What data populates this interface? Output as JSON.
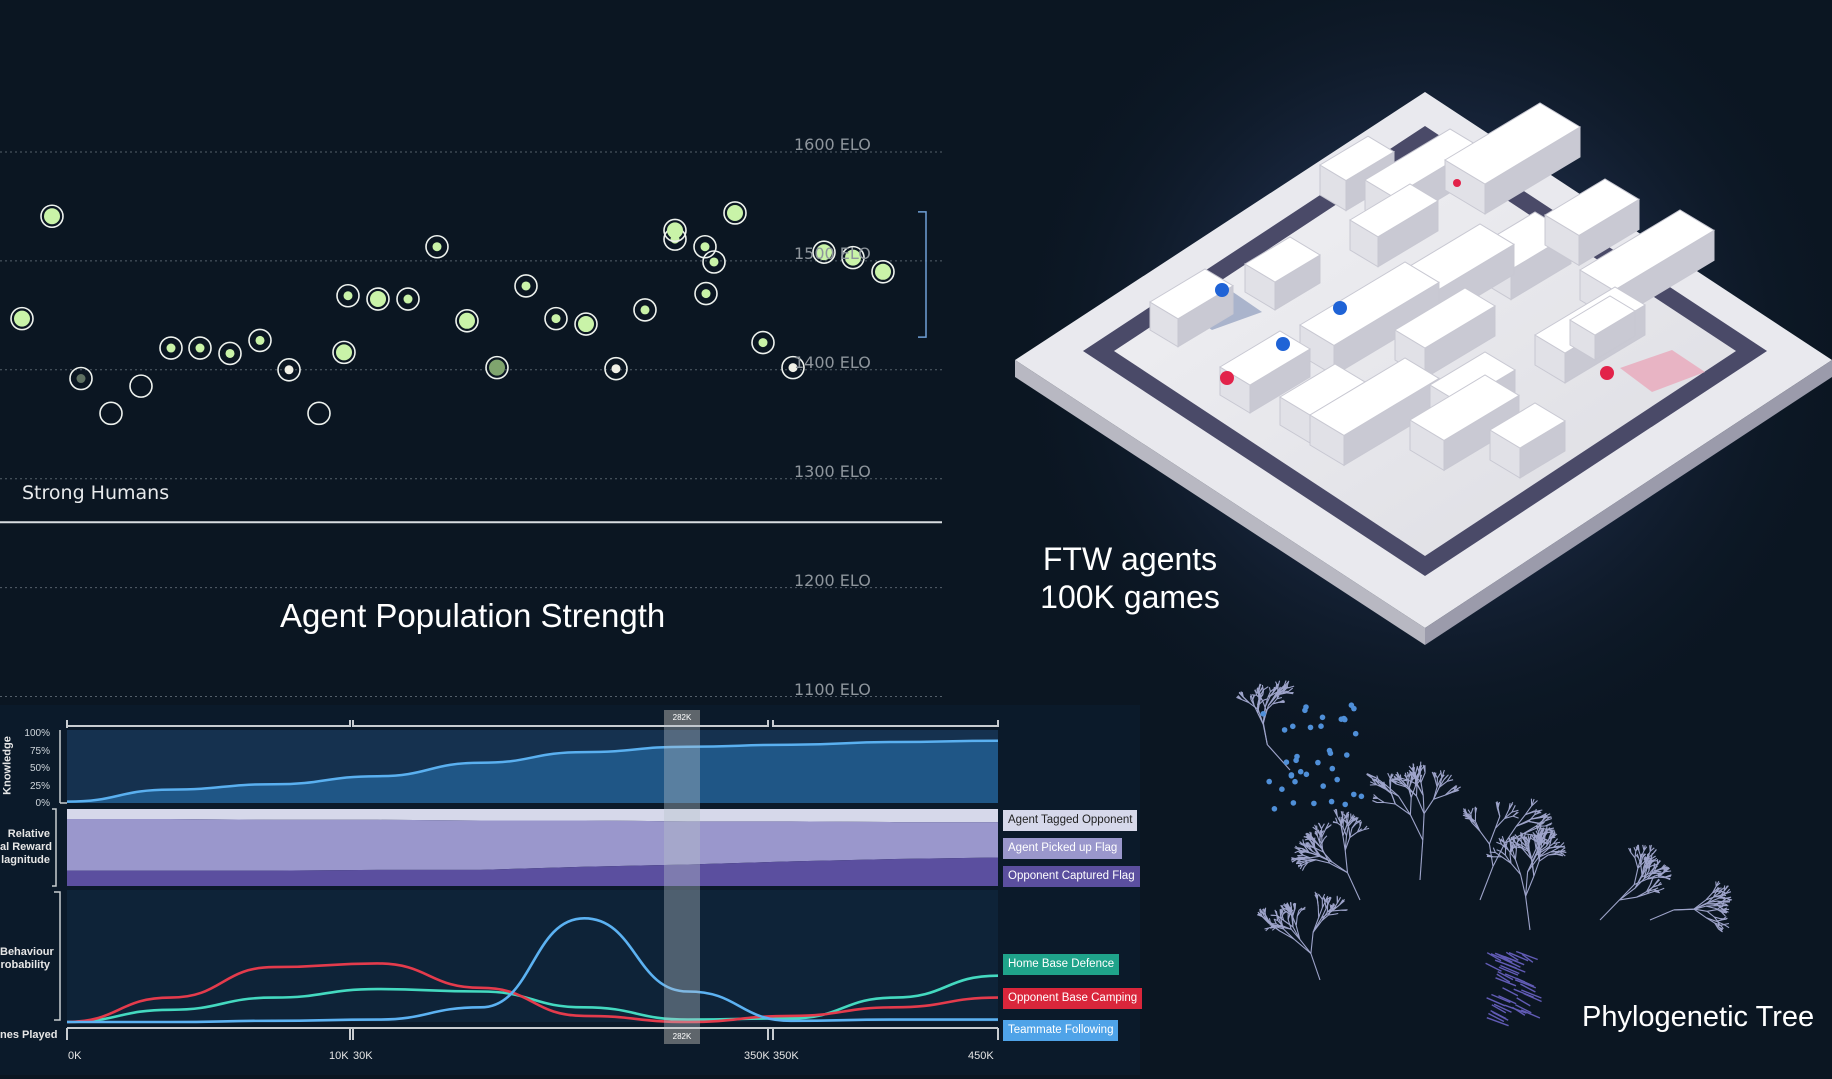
{
  "elo_chart": {
    "title": "Agent Population Strength",
    "gridlines": [
      {
        "elo": 1600,
        "label": "1600 ELO"
      },
      {
        "elo": 1500,
        "label": "1500 ELO"
      },
      {
        "elo": 1400,
        "label": "1400 ELO"
      },
      {
        "elo": 1300,
        "label": "1300 ELO"
      },
      {
        "elo": 1200,
        "label": "1200 ELO"
      },
      {
        "elo": 1100,
        "label": "1100 ELO"
      }
    ],
    "strong_humans_label": "Strong Humans",
    "strong_humans_elo": 1260
  },
  "ftw_caption": {
    "line1": "FTW agents",
    "line2": "100K games"
  },
  "tree_caption": "Phylogenetic Tree",
  "timeline": {
    "y_labels": {
      "knowledge": "Knowledge",
      "reward_line1": "Relative",
      "reward_line2": "al Reward",
      "reward_line3": "lagnitude",
      "behaviour_line1": "Behaviour",
      "behaviour_line2": "robability",
      "games": "nes Played"
    },
    "knowledge_ticks": [
      "100%",
      "75%",
      "50%",
      "25%",
      "0%"
    ],
    "x_ticks": [
      "0K",
      "10K",
      "30K",
      "350K",
      "350K",
      "450K"
    ],
    "marker_top": "282K",
    "marker_bottom": "282K",
    "reward_legend": [
      {
        "label": "Agent Tagged Opponent",
        "color": "#d6d8ea",
        "text_color": "#222"
      },
      {
        "label": "Agent Picked up Flag",
        "color": "#9a97cc",
        "text_color": "#fff"
      },
      {
        "label": "Opponent Captured Flag",
        "color": "#5b4f9f",
        "text_color": "#fff"
      }
    ],
    "behaviour_legend": [
      {
        "label": "Home Base Defence",
        "color": "#1fa38a"
      },
      {
        "label": "Opponent Base Camping",
        "color": "#d9263b"
      },
      {
        "label": "Teammate Following",
        "color": "#4fa3e8"
      }
    ]
  },
  "chart_data": [
    {
      "type": "scatter",
      "title": "Agent Population Strength",
      "ylabel": "",
      "ylim": [
        1100,
        1600
      ],
      "y_ticks": [
        1100,
        1200,
        1300,
        1400,
        1500,
        1600
      ],
      "reference_line": {
        "label": "Strong Humans",
        "y": 1260
      },
      "series": [
        {
          "values": [
            1541,
            1447,
            1392,
            1360,
            1385,
            1420,
            1420,
            1415,
            1427,
            1400,
            1360,
            1468,
            1416,
            1465,
            1465,
            1513,
            1445,
            1477,
            1402,
            1447,
            1442,
            1401,
            1520,
            1513,
            1455,
            1470,
            1499,
            1528,
            1544,
            1425,
            1402,
            1508,
            1503,
            1490
          ]
        }
      ]
    },
    {
      "type": "area",
      "ylabel": "Knowledge",
      "ylim": [
        0,
        100
      ],
      "x": [
        0,
        50,
        100,
        150,
        200,
        250,
        300,
        350,
        400,
        450
      ],
      "series": [
        {
          "values": [
            2,
            20,
            28,
            40,
            60,
            76,
            84,
            87,
            91,
            93
          ]
        }
      ]
    },
    {
      "type": "area",
      "ylabel": "Relative Internal Reward Magnitude",
      "series": [
        {
          "name": "Agent Tagged Opponent",
          "values": [
            0.13,
            0.13,
            0.14,
            0.14,
            0.15,
            0.15,
            0.16,
            0.16,
            0.17,
            0.17
          ]
        },
        {
          "name": "Agent Picked up Flag",
          "values": [
            0.67,
            0.67,
            0.66,
            0.65,
            0.64,
            0.6,
            0.56,
            0.52,
            0.48,
            0.46
          ]
        },
        {
          "name": "Opponent Captured Flag",
          "values": [
            0.2,
            0.2,
            0.2,
            0.21,
            0.21,
            0.25,
            0.28,
            0.32,
            0.35,
            0.37
          ]
        }
      ]
    },
    {
      "type": "line",
      "ylabel": "Behaviour Probability",
      "xlabel": "Games Played",
      "ylim": [
        0,
        1
      ],
      "x": [
        0,
        50,
        100,
        150,
        200,
        250,
        300,
        350,
        400,
        450
      ],
      "series": [
        {
          "name": "Home Base Defence",
          "values": [
            0.0,
            0.1,
            0.2,
            0.27,
            0.25,
            0.12,
            0.02,
            0.03,
            0.2,
            0.38
          ]
        },
        {
          "name": "Opponent Base Camping",
          "values": [
            0.0,
            0.2,
            0.45,
            0.48,
            0.28,
            0.05,
            0.0,
            0.05,
            0.12,
            0.2
          ]
        },
        {
          "name": "Teammate Following",
          "values": [
            0.0,
            0.0,
            0.01,
            0.02,
            0.12,
            0.85,
            0.25,
            0.01,
            0.02,
            0.02
          ]
        }
      ]
    }
  ]
}
